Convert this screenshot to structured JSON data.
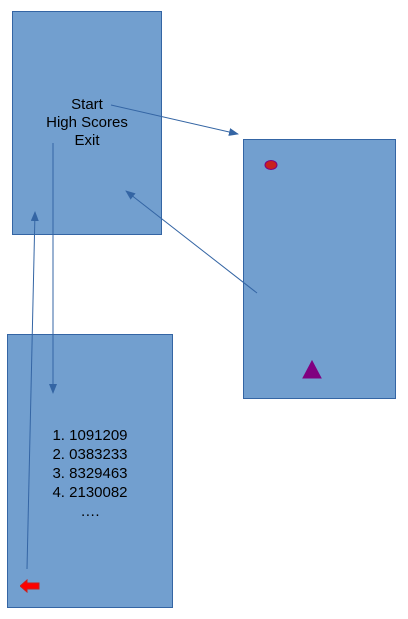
{
  "menu_screen": {
    "items": [
      {
        "label": "Start"
      },
      {
        "label": "High Scores"
      },
      {
        "label": "Exit"
      }
    ]
  },
  "game_screen": {
    "enemy_icon": "ellipse-enemy-icon",
    "player_icon": "triangle-player-icon"
  },
  "scores_screen": {
    "scores": [
      "1. 1091209",
      "2. 0383233",
      "3. 8329463",
      "4. 2130082"
    ],
    "more": "….",
    "back_icon": "back-arrow-icon"
  },
  "colors": {
    "screen_fill": "#729fcf",
    "screen_border": "#3465a4",
    "connector": "#3465a4",
    "enemy": "#c9211e",
    "player": "#800080",
    "back_arrow": "#ff0000"
  }
}
